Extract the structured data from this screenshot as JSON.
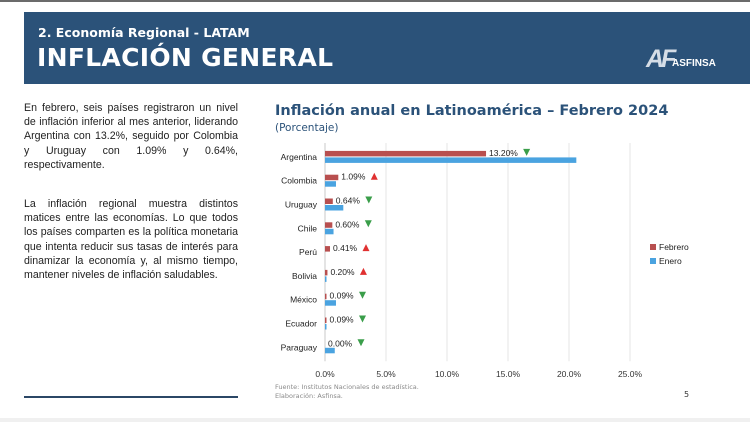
{
  "header": {
    "section": "2. Economía Regional - LATAM",
    "title": "INFLACIÓN GENERAL",
    "logo_mark": "AF",
    "logo_name": "ASFINSA",
    "color": "#2b5279"
  },
  "body": {
    "paragraph1": "En febrero, seis países registraron un nivel de inflación inferior al mes anterior, liderando Argentina con 13.2%, seguido por Colombia y Uruguay con 1.09% y 0.64%, respectivamente.",
    "paragraph2": "La inflación regional muestra distintos matices entre las economías. Lo que todos los países comparten es la política monetaria que intenta reducir sus tasas de interés para dinamizar la economía y, al mismo tiempo, mantener niveles de inflación saludables."
  },
  "footer": {
    "source": "Fuente: Institutos Nacionales de estadística.",
    "elaboration": "Elaboración: Asfinsa.",
    "page_number": "5"
  },
  "chart_data": {
    "type": "bar",
    "orientation": "horizontal",
    "title": "Inflación anual en Latinoamérica – Febrero 2024",
    "subtitle": "(Porcentaje)",
    "xlabel": "",
    "ylabel": "",
    "xlim": [
      0,
      25
    ],
    "x_ticks": [
      "0.0%",
      "5.0%",
      "10.0%",
      "15.0%",
      "20.0%",
      "25.0%"
    ],
    "grid": true,
    "legend_position": "right",
    "categories": [
      "Argentina",
      "Colombia",
      "Uruguay",
      "Chile",
      "Perú",
      "Bolivia",
      "México",
      "Ecuador",
      "Paraguay"
    ],
    "series": [
      {
        "name": "Febrero",
        "color": "#b84f4f",
        "values": [
          13.2,
          1.09,
          0.64,
          0.6,
          0.41,
          0.2,
          0.09,
          0.09,
          0.0
        ],
        "labels": [
          "13.20%",
          "1.09%",
          "0.64%",
          "0.60%",
          "0.41%",
          "0.20%",
          "0.09%",
          "0.09%",
          "0.00%"
        ]
      },
      {
        "name": "Enero",
        "color": "#4aa3e0",
        "values": [
          20.6,
          0.9,
          1.5,
          0.7,
          0.0,
          0.1,
          0.9,
          0.1,
          0.8
        ]
      }
    ],
    "trend": [
      "down",
      "up",
      "down",
      "down",
      "up",
      "up",
      "down",
      "down",
      "down"
    ],
    "trend_colors": {
      "up": "#e03131",
      "down": "#3a9e4a"
    }
  }
}
